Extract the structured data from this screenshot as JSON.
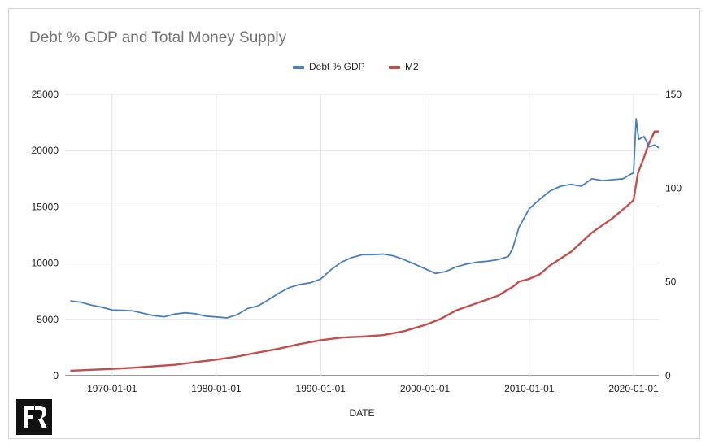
{
  "chart_data": {
    "type": "line",
    "title": "Debt % GDP and Total Money Supply",
    "xlabel": "DATE",
    "ylabel_left": "",
    "ylabel_right": "",
    "legend_position": "top-center",
    "grid": true,
    "x_range": [
      "1965-07-01",
      "2022-06-01"
    ],
    "x_ticks": [
      "1970-01-01",
      "1980-01-01",
      "1990-01-01",
      "2000-01-01",
      "2010-01-01",
      "2020-01-01"
    ],
    "y_left": {
      "range": [
        0,
        25000
      ],
      "ticks": [
        "0",
        "5000",
        "10000",
        "15000",
        "20000",
        "25000"
      ]
    },
    "y_right": {
      "range": [
        0,
        150
      ],
      "ticks": [
        "0",
        "50",
        "100",
        "150"
      ]
    },
    "series": [
      {
        "name": "M2",
        "axis": "left",
        "color": "#c0504d",
        "points": [
          [
            "1966-01-01",
            440
          ],
          [
            "1968-01-01",
            520
          ],
          [
            "1970-01-01",
            600
          ],
          [
            "1972-01-01",
            700
          ],
          [
            "1974-01-01",
            830
          ],
          [
            "1976-01-01",
            960
          ],
          [
            "1978-01-01",
            1200
          ],
          [
            "1980-01-01",
            1420
          ],
          [
            "1982-01-01",
            1700
          ],
          [
            "1984-01-01",
            2050
          ],
          [
            "1986-01-01",
            2400
          ],
          [
            "1988-01-01",
            2800
          ],
          [
            "1990-01-01",
            3150
          ],
          [
            "1992-01-01",
            3380
          ],
          [
            "1994-01-01",
            3470
          ],
          [
            "1996-01-01",
            3600
          ],
          [
            "1998-01-01",
            3950
          ],
          [
            "2000-01-01",
            4500
          ],
          [
            "2001-06-01",
            5000
          ],
          [
            "2003-01-01",
            5800
          ],
          [
            "2005-01-01",
            6450
          ],
          [
            "2007-01-01",
            7100
          ],
          [
            "2008-06-01",
            7900
          ],
          [
            "2009-01-01",
            8350
          ],
          [
            "2010-01-01",
            8600
          ],
          [
            "2011-01-01",
            9000
          ],
          [
            "2012-01-01",
            9800
          ],
          [
            "2014-01-01",
            11000
          ],
          [
            "2016-01-01",
            12700
          ],
          [
            "2018-01-01",
            14000
          ],
          [
            "2019-06-01",
            15100
          ],
          [
            "2020-01-01",
            15600
          ],
          [
            "2020-06-01",
            18000
          ],
          [
            "2021-01-01",
            19400
          ],
          [
            "2021-06-01",
            20500
          ],
          [
            "2022-01-01",
            21700
          ],
          [
            "2022-06-01",
            21700
          ]
        ]
      },
      {
        "name": "Debt % GDP",
        "axis": "right",
        "color": "#4a7ebb",
        "points": [
          [
            "1966-01-01",
            39.8
          ],
          [
            "1967-01-01",
            39.2
          ],
          [
            "1968-01-01",
            37.6
          ],
          [
            "1969-01-01",
            36.5
          ],
          [
            "1970-01-01",
            35.0
          ],
          [
            "1971-01-01",
            34.8
          ],
          [
            "1972-01-01",
            34.5
          ],
          [
            "1973-01-01",
            33.2
          ],
          [
            "1974-01-01",
            32.0
          ],
          [
            "1975-01-01",
            31.4
          ],
          [
            "1976-01-01",
            32.8
          ],
          [
            "1977-01-01",
            33.5
          ],
          [
            "1978-01-01",
            33.0
          ],
          [
            "1979-01-01",
            31.7
          ],
          [
            "1980-01-01",
            31.3
          ],
          [
            "1981-01-01",
            30.8
          ],
          [
            "1982-01-01",
            32.5
          ],
          [
            "1983-01-01",
            35.8
          ],
          [
            "1984-01-01",
            37.2
          ],
          [
            "1985-01-01",
            40.5
          ],
          [
            "1986-01-01",
            44.0
          ],
          [
            "1987-01-01",
            47.0
          ],
          [
            "1988-01-01",
            48.6
          ],
          [
            "1989-01-01",
            49.5
          ],
          [
            "1990-01-01",
            51.5
          ],
          [
            "1991-01-01",
            56.5
          ],
          [
            "1992-01-01",
            60.5
          ],
          [
            "1993-01-01",
            63.0
          ],
          [
            "1994-01-01",
            64.5
          ],
          [
            "1995-01-01",
            64.5
          ],
          [
            "1996-01-01",
            64.8
          ],
          [
            "1997-01-01",
            63.8
          ],
          [
            "1998-01-01",
            61.8
          ],
          [
            "1999-01-01",
            59.5
          ],
          [
            "2000-01-01",
            57.0
          ],
          [
            "2001-01-01",
            54.5
          ],
          [
            "2002-01-01",
            55.5
          ],
          [
            "2003-01-01",
            58.0
          ],
          [
            "2004-01-01",
            59.5
          ],
          [
            "2005-01-01",
            60.5
          ],
          [
            "2006-01-01",
            61.0
          ],
          [
            "2007-01-01",
            61.8
          ],
          [
            "2008-01-01",
            63.5
          ],
          [
            "2008-06-01",
            68.0
          ],
          [
            "2009-01-01",
            79.0
          ],
          [
            "2010-01-01",
            89.0
          ],
          [
            "2011-01-01",
            94.0
          ],
          [
            "2012-01-01",
            98.5
          ],
          [
            "2013-01-01",
            101.0
          ],
          [
            "2014-01-01",
            102.0
          ],
          [
            "2015-01-01",
            101.0
          ],
          [
            "2016-01-01",
            105.0
          ],
          [
            "2017-01-01",
            104.0
          ],
          [
            "2018-01-01",
            104.5
          ],
          [
            "2019-01-01",
            105.0
          ],
          [
            "2019-10-01",
            107.5
          ],
          [
            "2020-01-01",
            108.0
          ],
          [
            "2020-04-01",
            137.0
          ],
          [
            "2020-07-01",
            126.0
          ],
          [
            "2021-01-01",
            127.5
          ],
          [
            "2021-07-01",
            122.0
          ],
          [
            "2022-01-01",
            123.0
          ],
          [
            "2022-06-01",
            121.5
          ]
        ]
      }
    ]
  },
  "legend": {
    "items": [
      {
        "label": "Debt % GDP",
        "color": "#4a7ebb"
      },
      {
        "label": "M2",
        "color": "#c0504d"
      }
    ]
  },
  "logo": {
    "text": "FR"
  }
}
